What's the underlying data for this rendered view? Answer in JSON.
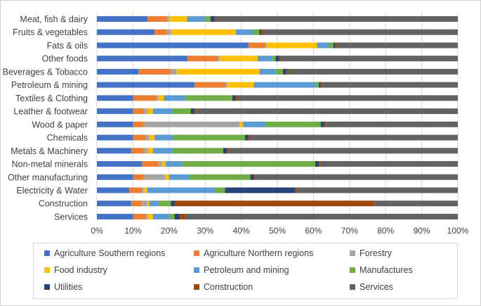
{
  "chart_data": {
    "type": "bar",
    "orientation": "horizontal",
    "stacked": "percent",
    "title": "",
    "xlabel": "",
    "ylabel": "",
    "xlim": [
      0,
      100
    ],
    "grid": true,
    "legend_position": "bottom",
    "x_ticks": [
      "0%",
      "10%",
      "20%",
      "30%",
      "40%",
      "50%",
      "60%",
      "70%",
      "80%",
      "90%",
      "100%"
    ],
    "categories": [
      "Meat, fish & dairy",
      "Fruits & vegetables",
      "Fats & oils",
      "Other foods",
      "Beverages & Tobacco",
      "Petroleum & mining",
      "Textiles & Clothing",
      "Leather & footwear",
      "Wood & paper",
      "Chemicals",
      "Metals & Machinery",
      "Non-metal minerals",
      "Other manufacturing",
      "Electricity & Water",
      "Construction",
      "Services"
    ],
    "series": [
      {
        "name": "Agriculture Southern regions",
        "color": "#4472c4",
        "values": [
          14,
          16,
          42,
          25,
          11.5,
          27,
          10,
          10,
          10,
          10,
          9.5,
          12.5,
          10,
          9,
          9.5,
          10
        ]
      },
      {
        "name": "Agriculture Northern regions",
        "color": "#ed7d31",
        "values": [
          5.5,
          3.5,
          4.5,
          8.5,
          9,
          8.5,
          6.5,
          3,
          3,
          3.5,
          3.5,
          4.5,
          3,
          3.5,
          3,
          3.5
        ]
      },
      {
        "name": "Forestry",
        "color": "#a5a5a5",
        "values": [
          0.5,
          1,
          0.5,
          0.5,
          1.5,
          0.5,
          0.5,
          1,
          26.5,
          1,
          1,
          1,
          6,
          0.5,
          1.5,
          0.5
        ]
      },
      {
        "name": "Food industry",
        "color": "#ffc000",
        "values": [
          5,
          18,
          14,
          10.5,
          23,
          7.5,
          1.5,
          1.5,
          1,
          1.5,
          1.5,
          1,
          1,
          1,
          0.5,
          1.5
        ]
      },
      {
        "name": "Petroleum and mining",
        "color": "#5b9bd5",
        "values": [
          5,
          4.5,
          3,
          4,
          4.5,
          17,
          6,
          5.5,
          6,
          5,
          5.5,
          4.5,
          5.5,
          18.5,
          2.5,
          4.5
        ]
      },
      {
        "name": "Manufactures",
        "color": "#70ad47",
        "values": [
          1.5,
          2,
          1.5,
          1,
          2,
          1,
          13,
          5,
          15.5,
          20,
          14,
          37,
          17,
          3,
          3.5,
          1.5
        ]
      },
      {
        "name": "Utilities",
        "color": "#264478",
        "values": [
          1,
          0.5,
          0.5,
          1,
          1,
          0.5,
          1,
          1,
          1,
          1,
          1,
          1,
          1,
          19.5,
          1,
          1.5
        ]
      },
      {
        "name": "Construction",
        "color": "#9e480e",
        "values": [
          0.5,
          0.5,
          0.5,
          0.5,
          0.5,
          0.5,
          0.5,
          0.5,
          0.5,
          0.5,
          0.5,
          0.5,
          0.5,
          0.5,
          55.5,
          1.5
        ]
      },
      {
        "name": "Services",
        "color": "#636363",
        "values": [
          67,
          54,
          33.5,
          49,
          47,
          37.5,
          61,
          72.5,
          36.5,
          57.5,
          63.5,
          38,
          56,
          44.5,
          23,
          75.5
        ]
      }
    ]
  }
}
